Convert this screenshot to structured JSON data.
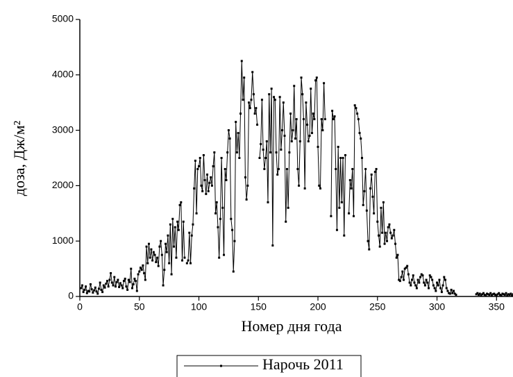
{
  "chart_data": {
    "type": "line",
    "x_label": "Номер дня года",
    "y_label": "доза, Дж/м²",
    "xlim": [
      0,
      365
    ],
    "ylim": [
      0,
      5000
    ],
    "xticks": [
      0,
      50,
      100,
      150,
      200,
      250,
      300,
      350
    ],
    "yticks": [
      0,
      1000,
      2000,
      3000,
      4000,
      5000
    ],
    "legend": "bottom",
    "x": [
      1,
      2,
      3,
      4,
      5,
      6,
      7,
      8,
      9,
      10,
      11,
      12,
      13,
      14,
      15,
      16,
      17,
      18,
      19,
      20,
      21,
      22,
      23,
      24,
      25,
      26,
      27,
      28,
      29,
      30,
      31,
      32,
      33,
      34,
      35,
      36,
      37,
      38,
      39,
      40,
      41,
      42,
      43,
      44,
      45,
      46,
      47,
      48,
      49,
      50,
      51,
      52,
      53,
      54,
      55,
      56,
      57,
      58,
      59,
      60,
      61,
      62,
      63,
      64,
      65,
      66,
      67,
      68,
      69,
      70,
      71,
      72,
      73,
      74,
      75,
      76,
      77,
      78,
      79,
      80,
      81,
      82,
      83,
      84,
      85,
      86,
      87,
      88,
      89,
      90,
      91,
      92,
      93,
      94,
      95,
      96,
      97,
      98,
      99,
      100,
      101,
      102,
      103,
      104,
      105,
      106,
      107,
      108,
      109,
      110,
      111,
      112,
      113,
      114,
      115,
      116,
      117,
      118,
      119,
      120,
      121,
      122,
      123,
      124,
      125,
      126,
      127,
      128,
      129,
      130,
      131,
      132,
      133,
      134,
      135,
      136,
      137,
      138,
      139,
      140,
      141,
      142,
      143,
      144,
      145,
      146,
      147,
      148,
      149,
      150,
      151,
      152,
      153,
      154,
      155,
      156,
      157,
      158,
      159,
      160,
      161,
      162,
      163,
      164,
      165,
      166,
      167,
      168,
      169,
      170,
      171,
      172,
      173,
      174,
      175,
      176,
      177,
      178,
      179,
      180,
      181,
      182,
      183,
      184,
      185,
      186,
      187,
      188,
      189,
      190,
      191,
      192,
      193,
      194,
      195,
      196,
      197,
      198,
      199,
      200,
      201,
      202,
      203,
      204,
      205,
      206,
      207,
      208,
      209,
      210,
      211,
      212,
      213,
      214,
      215,
      216,
      217,
      218,
      219,
      220,
      221,
      222,
      223,
      224,
      225,
      226,
      227,
      228,
      229,
      230,
      231,
      232,
      233,
      234,
      235,
      236,
      237,
      238,
      239,
      240,
      241,
      242,
      243,
      244,
      245,
      246,
      247,
      248,
      249,
      250,
      251,
      252,
      253,
      254,
      255,
      256,
      257,
      258,
      259,
      260,
      261,
      262,
      263,
      264,
      265,
      266,
      267,
      268,
      269,
      270,
      271,
      272,
      273,
      274,
      275,
      276,
      277,
      278,
      279,
      280,
      281,
      282,
      283,
      284,
      285,
      286,
      287,
      288,
      289,
      290,
      291,
      292,
      293,
      294,
      295,
      296,
      297,
      298,
      299,
      300,
      301,
      302,
      303,
      304,
      305,
      306,
      307,
      308,
      309,
      310,
      311,
      312,
      313,
      314,
      315,
      316,
      317,
      318,
      319,
      320,
      321,
      322,
      323,
      324,
      325,
      326,
      327,
      328,
      329,
      330,
      331,
      332,
      333,
      334,
      335,
      336,
      337,
      338,
      339,
      340,
      341,
      342,
      343,
      344,
      345,
      346,
      347,
      348,
      349,
      350,
      351,
      352,
      353,
      354,
      355,
      356,
      357,
      358,
      359,
      360,
      361,
      362,
      363,
      364,
      365
    ],
    "series": [
      {
        "name": "Нарочь 2011",
        "color": "#000000",
        "values": [
          150,
          200,
          80,
          120,
          180,
          60,
          100,
          90,
          220,
          130,
          70,
          110,
          160,
          90,
          50,
          140,
          250,
          120,
          80,
          200,
          160,
          230,
          280,
          180,
          300,
          420,
          250,
          200,
          350,
          180,
          260,
          300,
          170,
          240,
          200,
          150,
          280,
          320,
          180,
          120,
          300,
          260,
          500,
          150,
          220,
          320,
          280,
          100,
          400,
          450,
          520,
          480,
          560,
          420,
          300,
          900,
          600,
          950,
          700,
          850,
          650,
          800,
          750,
          620,
          700,
          550,
          900,
          1000,
          750,
          200,
          480,
          950,
          800,
          1100,
          600,
          1300,
          400,
          1400,
          900,
          1250,
          700,
          1350,
          1200,
          1650,
          1700,
          650,
          1350,
          700,
          null,
          600,
          650,
          1150,
          600,
          1100,
          1300,
          1950,
          2450,
          1500,
          2300,
          2350,
          2500,
          2000,
          1900,
          2550,
          2100,
          1850,
          2200,
          1900,
          2050,
          2150,
          2000,
          2350,
          2600,
          1500,
          1700,
          1250,
          700,
          1400,
          2500,
          1600,
          750,
          2300,
          2100,
          2600,
          3000,
          2850,
          1400,
          1200,
          450,
          1000,
          3150,
          2600,
          2950,
          2500,
          3300,
          4250,
          3550,
          3950,
          2150,
          1750,
          2000,
          3500,
          3400,
          3550,
          4050,
          3650,
          3300,
          3400,
          3100,
          null,
          2500,
          2750,
          3550,
          2650,
          2300,
          2500,
          2800,
          1700,
          3650,
          2600,
          3750,
          920,
          3600,
          3550,
          2600,
          2200,
          2300,
          3600,
          2650,
          3000,
          3500,
          2900,
          1350,
          2300,
          1600,
          2600,
          3300,
          2800,
          3000,
          3800,
          2850,
          3200,
          2300,
          2000,
          2800,
          3950,
          3650,
          3200,
          1950,
          3500,
          3100,
          2800,
          2900,
          3750,
          2950,
          3300,
          3200,
          3900,
          3950,
          2700,
          2000,
          1950,
          3200,
          3000,
          3850,
          3200,
          null,
          null,
          null,
          null,
          1450,
          3350,
          3200,
          3250,
          2300,
          1200,
          2700,
          1600,
          2500,
          1700,
          2500,
          1100,
          2550,
          null,
          null,
          1500,
          2100,
          1950,
          2300,
          1450,
          3450,
          3400,
          3300,
          3200,
          2950,
          2850,
          2500,
          1650,
          1900,
          2300,
          1550,
          1000,
          850,
          1950,
          2200,
          1800,
          1500,
          2250,
          2300,
          1350,
          1100,
          900,
          1600,
          1150,
          1700,
          950,
          1150,
          1000,
          1250,
          1300,
          1150,
          1050,
          1100,
          1200,
          950,
          700,
          750,
          300,
          280,
          350,
          450,
          300,
          500,
          520,
          550,
          400,
          250,
          200,
          300,
          380,
          250,
          200,
          150,
          300,
          250,
          350,
          400,
          380,
          250,
          200,
          300,
          250,
          150,
          380,
          350,
          300,
          200,
          150,
          100,
          250,
          200,
          300,
          150,
          80,
          200,
          350,
          300,
          150,
          100,
          60,
          50,
          120,
          60,
          100,
          50,
          30,
          null,
          null,
          null,
          null,
          null,
          null,
          null,
          null,
          null,
          null,
          null,
          null,
          null,
          null,
          null,
          null,
          40,
          60,
          30,
          50,
          20,
          40,
          60,
          30,
          20,
          50,
          40,
          30,
          60,
          20,
          40,
          50,
          30,
          20,
          40,
          60,
          30,
          20,
          50,
          40,
          30,
          60,
          20,
          40,
          30,
          50,
          20,
          40,
          60
        ]
      }
    ]
  }
}
